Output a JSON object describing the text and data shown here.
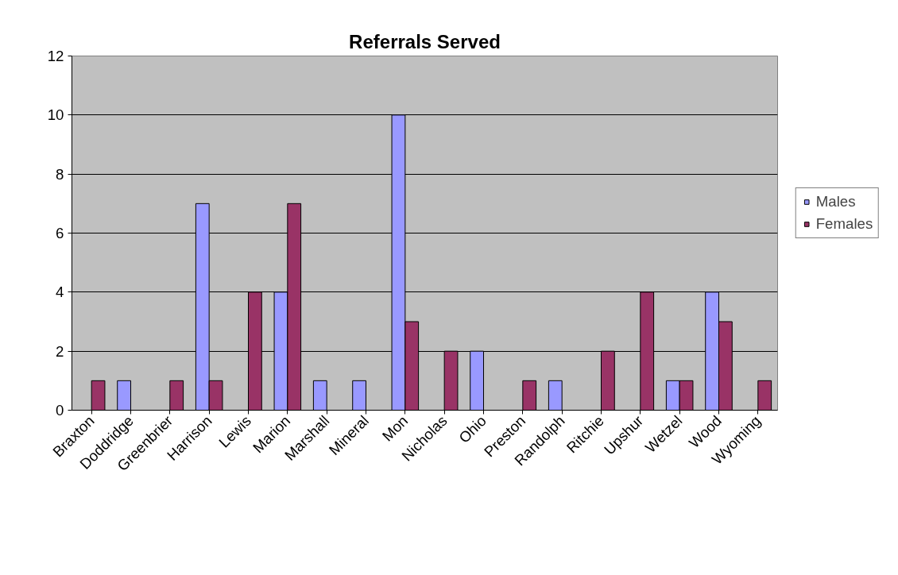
{
  "chart_data": {
    "type": "bar",
    "title": "Referrals Served",
    "categories": [
      "Braxton",
      "Doddridge",
      "Greenbrier",
      "Harrison",
      "Lewis",
      "Marion",
      "Marshall",
      "Mineral",
      "Mon",
      "Nicholas",
      "Ohio",
      "Preston",
      "Randolph",
      "Ritchie",
      "Upshur",
      "Wetzel",
      "Wood",
      "Wyoming"
    ],
    "series": [
      {
        "name": "Males",
        "color": "#9999ff",
        "values": [
          0,
          1,
          0,
          7,
          0,
          4,
          1,
          1,
          10,
          0,
          2,
          0,
          1,
          0,
          0,
          1,
          4,
          0
        ]
      },
      {
        "name": "Females",
        "color": "#993366",
        "values": [
          1,
          0,
          1,
          1,
          4,
          7,
          0,
          0,
          3,
          2,
          0,
          1,
          0,
          2,
          4,
          1,
          3,
          1
        ]
      }
    ],
    "ylim": [
      0,
      12
    ],
    "yticks": [
      0,
      2,
      4,
      6,
      8,
      10,
      12
    ],
    "grid": "y",
    "legend": "right"
  }
}
